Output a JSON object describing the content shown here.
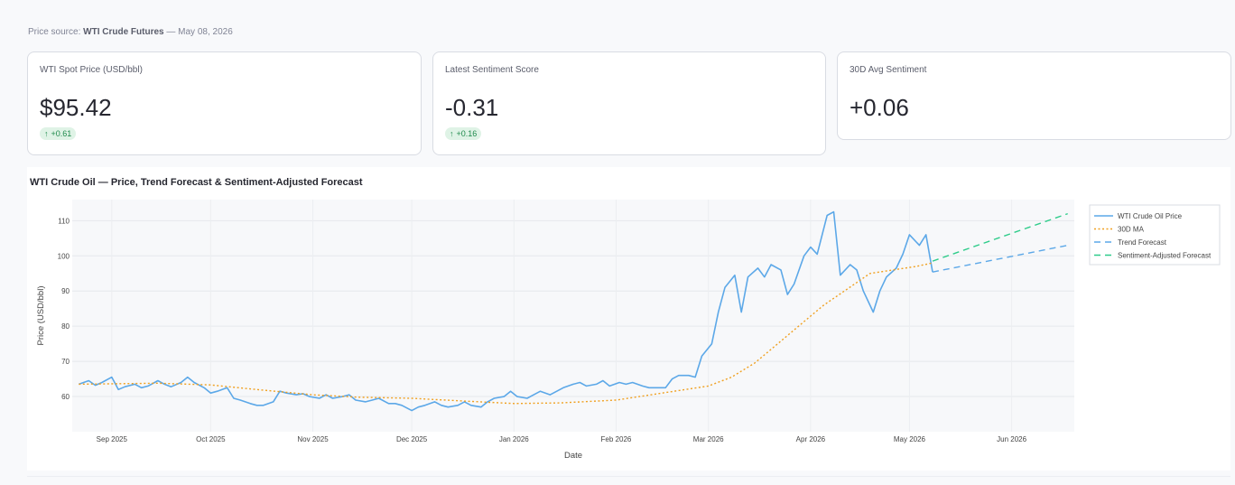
{
  "source": {
    "prefix": "Price source:",
    "name": "WTI Crude Futures",
    "date": "— May 08, 2026"
  },
  "metrics": [
    {
      "label": "WTI Spot Price (USD/bbl)",
      "value": "$95.42",
      "delta": "+0.61",
      "delta_color": "#1f8a4c"
    },
    {
      "label": "Latest Sentiment Score",
      "value": "-0.31",
      "delta": "+0.16",
      "delta_color": "#1f8a4c"
    },
    {
      "label": "30D Avg Sentiment",
      "value": "+0.06"
    }
  ],
  "chart_data": {
    "type": "line",
    "title": "WTI Crude Oil — Price, Trend Forecast & Sentiment-Adjusted Forecast",
    "xlabel": "Date",
    "ylabel": "Price (USD/bbl)",
    "xlim": [
      "2025-08-20",
      "2026-06-20"
    ],
    "ylim": [
      50,
      116
    ],
    "x_ticks": [
      "Sep 2025",
      "Oct 2025",
      "Nov 2025",
      "Dec 2025",
      "Jan 2026",
      "Feb 2026",
      "Mar 2026",
      "Apr 2026",
      "May 2026",
      "Jun 2026"
    ],
    "y_ticks": [
      60,
      70,
      80,
      90,
      100,
      110
    ],
    "grid": true,
    "legend_position": "right",
    "series": [
      {
        "name": "WTI Crude Oil Price",
        "color": "#5ca8e8",
        "style": "solid",
        "x": [
          "2025-08-22",
          "2025-08-25",
          "2025-08-27",
          "2025-08-29",
          "2025-09-01",
          "2025-09-03",
          "2025-09-05",
          "2025-09-08",
          "2025-09-10",
          "2025-09-12",
          "2025-09-15",
          "2025-09-17",
          "2025-09-19",
          "2025-09-22",
          "2025-09-24",
          "2025-09-26",
          "2025-09-29",
          "2025-10-01",
          "2025-10-03",
          "2025-10-06",
          "2025-10-08",
          "2025-10-10",
          "2025-10-13",
          "2025-10-15",
          "2025-10-17",
          "2025-10-20",
          "2025-10-22",
          "2025-10-24",
          "2025-10-27",
          "2025-10-29",
          "2025-10-31",
          "2025-11-03",
          "2025-11-05",
          "2025-11-07",
          "2025-11-10",
          "2025-11-12",
          "2025-11-14",
          "2025-11-17",
          "2025-11-19",
          "2025-11-21",
          "2025-11-24",
          "2025-11-26",
          "2025-11-28",
          "2025-12-01",
          "2025-12-03",
          "2025-12-05",
          "2025-12-08",
          "2025-12-10",
          "2025-12-12",
          "2025-12-15",
          "2025-12-17",
          "2025-12-19",
          "2025-12-22",
          "2025-12-24",
          "2025-12-26",
          "2025-12-29",
          "2025-12-31",
          "2026-01-02",
          "2026-01-05",
          "2026-01-07",
          "2026-01-09",
          "2026-01-12",
          "2026-01-14",
          "2026-01-16",
          "2026-01-19",
          "2026-01-21",
          "2026-01-23",
          "2026-01-26",
          "2026-01-28",
          "2026-01-30",
          "2026-02-02",
          "2026-02-04",
          "2026-02-06",
          "2026-02-09",
          "2026-02-11",
          "2026-02-13",
          "2026-02-16",
          "2026-02-18",
          "2026-02-20",
          "2026-02-23",
          "2026-02-25",
          "2026-02-27",
          "2026-03-02",
          "2026-03-04",
          "2026-03-06",
          "2026-03-09",
          "2026-03-11",
          "2026-03-13",
          "2026-03-16",
          "2026-03-18",
          "2026-03-20",
          "2026-03-23",
          "2026-03-25",
          "2026-03-27",
          "2026-03-30",
          "2026-04-01",
          "2026-04-03",
          "2026-04-06",
          "2026-04-08",
          "2026-04-10",
          "2026-04-13",
          "2026-04-15",
          "2026-04-17",
          "2026-04-20",
          "2026-04-22",
          "2026-04-24",
          "2026-04-27",
          "2026-04-29",
          "2026-05-01",
          "2026-05-04",
          "2026-05-06",
          "2026-05-08"
        ],
        "y": [
          63.5,
          64.5,
          63.2,
          64.0,
          65.5,
          62.0,
          62.8,
          63.5,
          62.5,
          63.0,
          64.5,
          63.5,
          62.8,
          64.0,
          65.5,
          64.0,
          62.5,
          61.0,
          61.5,
          62.5,
          59.5,
          59.0,
          58.0,
          57.5,
          57.5,
          58.5,
          61.5,
          61.0,
          60.5,
          60.8,
          60.0,
          59.5,
          60.5,
          59.5,
          60.0,
          60.5,
          59.0,
          58.5,
          59.0,
          59.5,
          58.0,
          58.0,
          57.5,
          56.0,
          57.0,
          57.5,
          58.5,
          57.5,
          57.0,
          57.5,
          58.5,
          57.5,
          57.0,
          58.5,
          59.5,
          60.0,
          61.5,
          60.0,
          59.5,
          60.5,
          61.5,
          60.5,
          61.5,
          62.5,
          63.5,
          64.0,
          63.0,
          63.5,
          64.5,
          63.0,
          64.0,
          63.5,
          64.0,
          63.0,
          62.5,
          62.5,
          62.5,
          65.0,
          66.0,
          66.0,
          65.5,
          71.5,
          75.0,
          84.0,
          91.0,
          94.5,
          84.0,
          94.0,
          96.5,
          94.0,
          97.5,
          96.0,
          89.0,
          92.0,
          100.0,
          102.5,
          100.5,
          111.5,
          112.5,
          94.5,
          97.5,
          96.0,
          90.0,
          84.0,
          90.0,
          94.0,
          96.5,
          100.5,
          106.0,
          103.0,
          106.0,
          95.4
        ]
      },
      {
        "name": "30D MA",
        "color": "#f0a020",
        "style": "dotted",
        "x": [
          "2025-08-22",
          "2025-09-15",
          "2025-10-01",
          "2025-10-15",
          "2025-11-01",
          "2025-11-15",
          "2025-12-01",
          "2025-12-15",
          "2026-01-01",
          "2026-01-15",
          "2026-02-01",
          "2026-02-15",
          "2026-03-01",
          "2026-03-08",
          "2026-03-15",
          "2026-03-22",
          "2026-03-29",
          "2026-04-05",
          "2026-04-12",
          "2026-04-19",
          "2026-04-26",
          "2026-05-03",
          "2026-05-08"
        ],
        "y": [
          63.5,
          63.8,
          63.3,
          62.0,
          60.5,
          59.8,
          59.5,
          58.8,
          58.0,
          58.2,
          59.0,
          61.0,
          63.0,
          65.5,
          69.5,
          75.0,
          80.5,
          86.0,
          90.5,
          95.0,
          96.0,
          97.0,
          98.0
        ]
      },
      {
        "name": "Trend Forecast",
        "color": "#5ca8e8",
        "style": "dashed",
        "x": [
          "2026-05-08",
          "2026-06-18"
        ],
        "y": [
          95.4,
          103.0
        ]
      },
      {
        "name": "Sentiment-Adjusted Forecast",
        "color": "#2ecc8a",
        "style": "dashed",
        "x": [
          "2026-05-08",
          "2026-06-18"
        ],
        "y": [
          98.5,
          112.0
        ]
      }
    ]
  }
}
